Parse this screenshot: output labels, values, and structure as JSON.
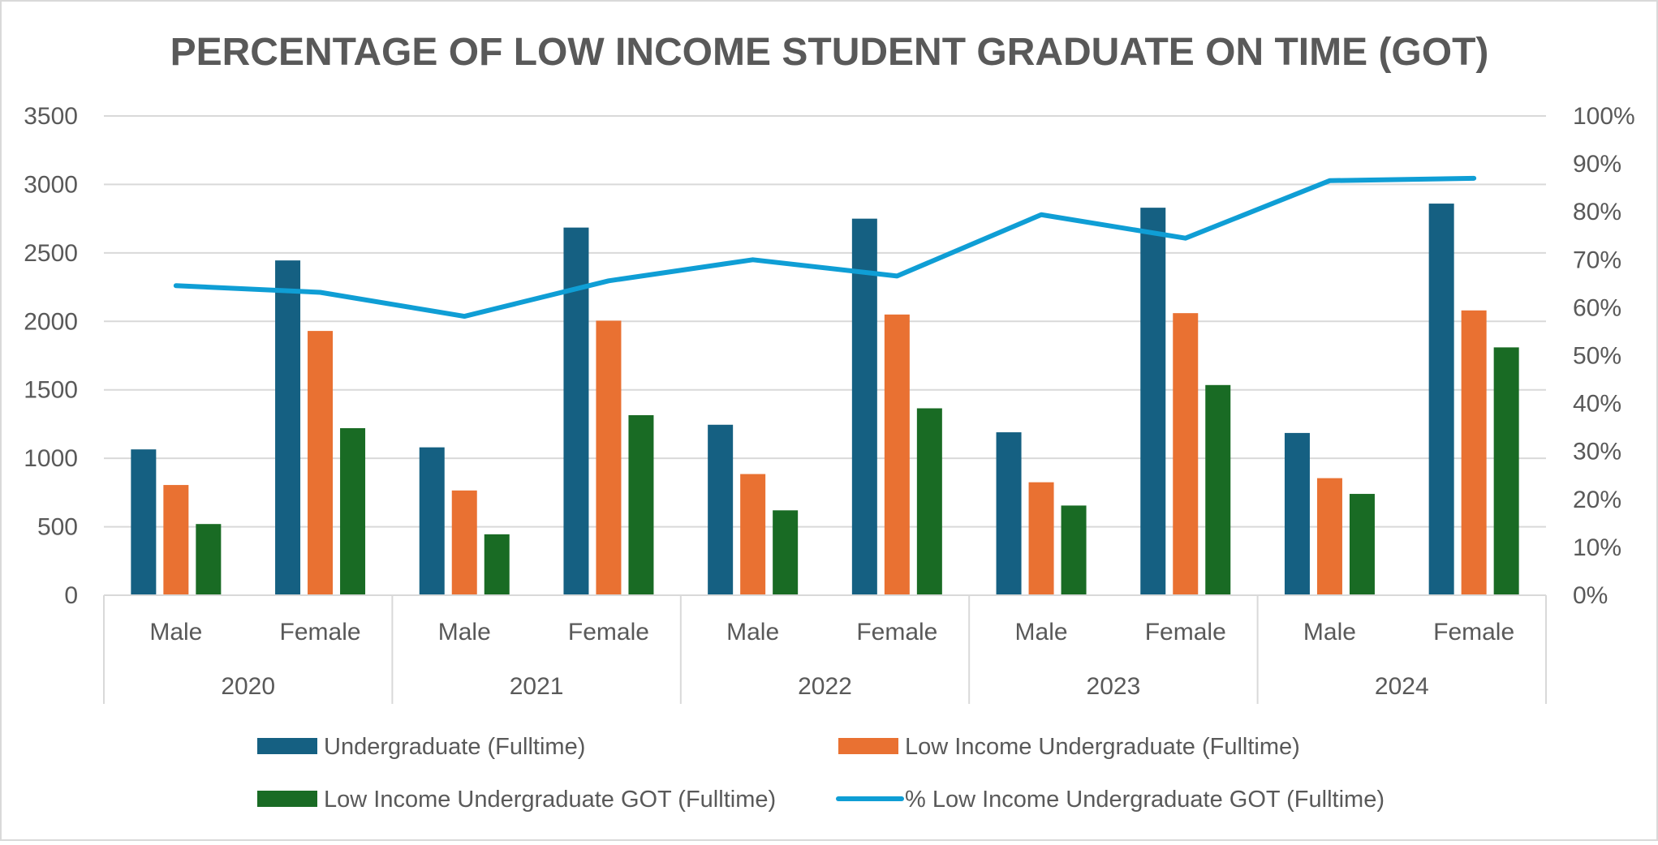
{
  "chart_data": {
    "type": "bar",
    "title": "PERCENTAGE OF LOW INCOME STUDENT GRADUATE ON TIME (GOT)",
    "groups": [
      "2020",
      "2021",
      "2022",
      "2023",
      "2024"
    ],
    "categories": [
      "Male",
      "Female",
      "Male",
      "Female",
      "Male",
      "Female",
      "Male",
      "Female",
      "Male",
      "Female"
    ],
    "series": [
      {
        "name": "Undergraduate (Fulltime)",
        "type": "bar",
        "axis": "left",
        "color": "#156082",
        "values": [
          1065,
          2445,
          1080,
          2685,
          1245,
          2750,
          1190,
          2830,
          1185,
          2860
        ]
      },
      {
        "name": "Low Income Undergraduate (Fulltime)",
        "type": "bar",
        "axis": "left",
        "color": "#E97132",
        "values": [
          805,
          1930,
          765,
          2005,
          885,
          2050,
          825,
          2060,
          855,
          2080
        ]
      },
      {
        "name": "Low Income Undergraduate GOT (Fulltime)",
        "type": "bar",
        "axis": "left",
        "color": "#196B24",
        "values": [
          520,
          1220,
          445,
          1315,
          620,
          1365,
          655,
          1535,
          740,
          1810
        ]
      },
      {
        "name": "% Low Income Undergraduate GOT (Fulltime)",
        "type": "line",
        "axis": "right",
        "color": "#0F9ED5",
        "values": [
          64.6,
          63.2,
          58.2,
          65.6,
          70.0,
          66.6,
          79.4,
          74.5,
          86.5,
          87.0
        ]
      }
    ],
    "y_left": {
      "min": 0,
      "max": 3500,
      "ticks": [
        "0",
        "500",
        "1000",
        "1500",
        "2000",
        "2500",
        "3000",
        "3500"
      ]
    },
    "y_right": {
      "min": 0,
      "max": 100,
      "ticks": [
        "0%",
        "10%",
        "20%",
        "30%",
        "40%",
        "50%",
        "60%",
        "70%",
        "80%",
        "90%",
        "100%"
      ]
    },
    "grid": true,
    "legend_position": "bottom"
  }
}
